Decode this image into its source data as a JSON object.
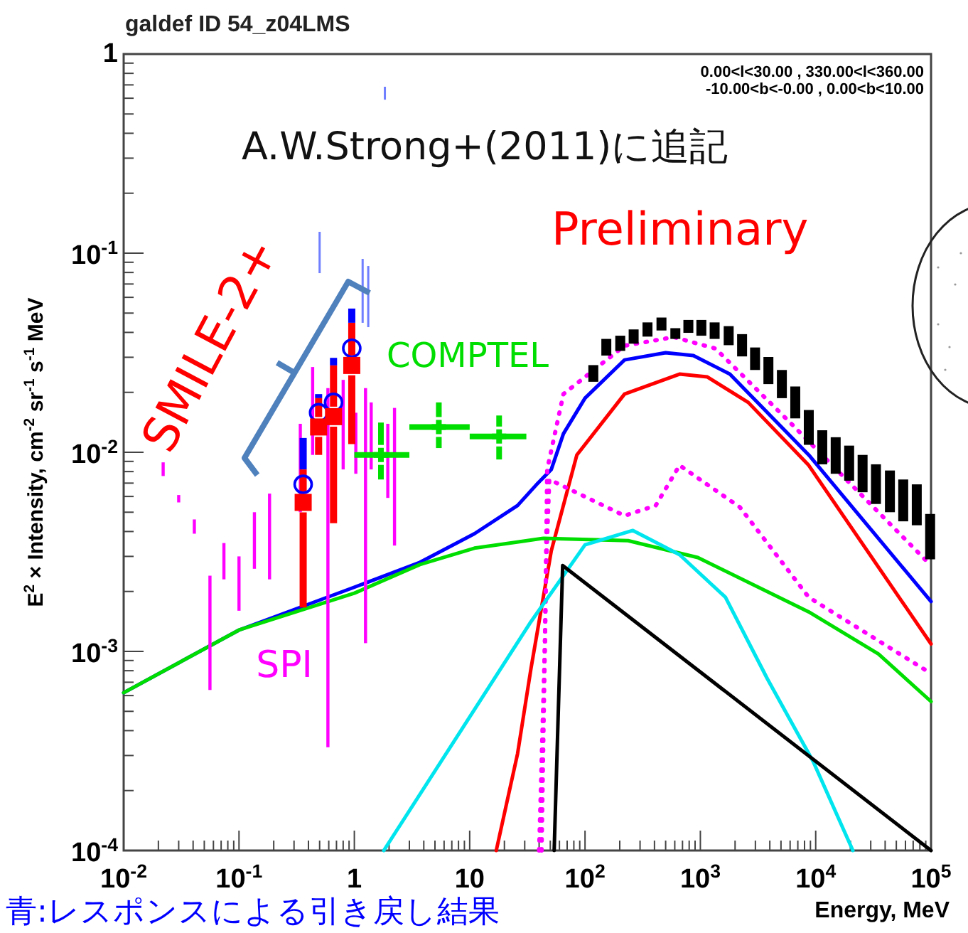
{
  "chart_data": {
    "type": "line",
    "title": "galdef ID 54_z04LMS",
    "xlabel": "Energy, MeV",
    "ylabel": "E$^{2}$ × Intensity, cm$^{-2}$ sr$^{-1}$ s$^{-1}$ MeV",
    "log": "xy",
    "grid": false,
    "xlim": [
      0.01,
      100000
    ],
    "ylim": [
      0.0001,
      1
    ],
    "xticks": [
      {
        "value": 0.01,
        "label": "10$^{-2}$"
      },
      {
        "value": 0.1,
        "label": "10$^{-1}$"
      },
      1,
      10,
      {
        "value": 100,
        "label": "10$^{2}$"
      },
      {
        "value": 1000,
        "label": "10$^{3}$"
      },
      {
        "value": 10000,
        "label": "10$^{4}$"
      },
      {
        "value": 100000,
        "label": "10$^{5}$"
      }
    ],
    "yticks": [
      {
        "value": 0.0001,
        "label": "10$^{-4}$"
      },
      {
        "value": 0.001,
        "label": "10$^{-3}$"
      },
      {
        "value": 0.01,
        "label": "10$^{-2}$"
      },
      {
        "value": 0.1,
        "label": "10$^{-1}$"
      },
      1
    ],
    "annotations": [
      "0.00<l<30.00 , 330.00<l<360.00",
      "-10.00<b<-0.00 ,  0.00<b<10.00",
      "A.W.Strong+(2011)に追記",
      "Preliminary",
      "青:レスポンスによる引き戻し結果"
    ],
    "series": [
      {
        "color": "#0000ff",
        "line_style": "solid",
        "x": [
          0.01,
          0.1,
          1,
          3.7,
          11,
          26,
          39,
          51,
          65,
          100,
          220,
          500,
          870,
          1800,
          8700,
          100000
        ],
        "values": [
          0.00062,
          0.00128,
          0.0021,
          0.0028,
          0.0039,
          0.0054,
          0.007,
          0.0082,
          0.0124,
          0.0187,
          0.0291,
          0.0316,
          0.0306,
          0.0247,
          0.0097,
          0.00178
        ]
      },
      {
        "color": "#ff00ff",
        "line_style": "dotted",
        "x": [
          40,
          45,
          47,
          65,
          220,
          590,
          1350,
          6000,
          98000
        ],
        "values": [
          0.0001,
          0.00114,
          0.0082,
          0.0196,
          0.0343,
          0.0379,
          0.0332,
          0.0141,
          0.00273
        ]
      },
      {
        "color": "#ff0000",
        "line_style": "solid",
        "x": [
          17,
          26,
          34,
          51,
          85,
          220,
          660,
          1150,
          2600,
          8700,
          100000
        ],
        "values": [
          0.0001,
          0.000306,
          0.00082,
          0.0032,
          0.0097,
          0.0196,
          0.0247,
          0.0239,
          0.0178,
          0.0086,
          0.00109
        ]
      },
      {
        "color": "#ff00ff",
        "line_style": "dotted",
        "x": [
          42,
          46,
          49,
          220,
          410,
          660,
          2200,
          8700,
          98000
        ],
        "values": [
          0.0001,
          0.0027,
          0.0073,
          0.0048,
          0.0054,
          0.0086,
          0.0053,
          0.00187,
          0.00078
        ]
      },
      {
        "color": "#00dd00",
        "line_style": "solid",
        "x": [
          0.01,
          0.1,
          1,
          3.7,
          11,
          44,
          236,
          950,
          8700,
          35000,
          100000
        ],
        "values": [
          0.00062,
          0.00128,
          0.00196,
          0.00273,
          0.0033,
          0.0037,
          0.0036,
          0.00296,
          0.00158,
          0.00097,
          0.00056
        ]
      },
      {
        "color": "#00e5ee",
        "line_style": "solid",
        "x": [
          1.8,
          34,
          100,
          260,
          660,
          1650,
          3800,
          9500,
          21000
        ],
        "values": [
          0.0001,
          0.00141,
          0.00343,
          0.00405,
          0.00306,
          0.00187,
          0.00073,
          0.00028,
          0.0001
        ]
      },
      {
        "color": "#000000",
        "line_style": "solid",
        "x": [
          54,
          64,
          100000
        ],
        "values": [
          0.0001,
          0.0027,
          0.0001
        ]
      },
      {
        "type": "bar",
        "color": "#000000",
        "x": [
          118,
          153,
          202,
          264,
          348,
          460,
          607,
          787,
          1020,
          1330,
          1760,
          2300,
          2980,
          3890,
          5090,
          6650,
          8710,
          11400,
          14900,
          19500,
          25500,
          33300,
          44000,
          57400,
          75200,
          98200
        ],
        "base": [
          0.0226,
          0.0306,
          0.0323,
          0.0351,
          0.0381,
          0.0409,
          0.0371,
          0.0398,
          0.0385,
          0.0371,
          0.0345,
          0.0303,
          0.0259,
          0.022,
          0.0187,
          0.0148,
          0.0109,
          0.0087,
          0.0078,
          0.0072,
          0.0063,
          0.0055,
          0.005,
          0.0045,
          0.0043,
          0.0029
        ],
        "values": [
          0.0048,
          0.0065,
          0.0062,
          0.0063,
          0.0068,
          0.0066,
          0.0049,
          0.0064,
          0.0077,
          0.0078,
          0.0085,
          0.0089,
          0.0077,
          0.0081,
          0.0072,
          0.0066,
          0.0054,
          0.0042,
          0.0041,
          0.0036,
          0.0034,
          0.0032,
          0.0031,
          0.0028,
          0.0026,
          0.002
        ]
      },
      {
        "type": "bar",
        "name": "SPI",
        "color": "#ff00ff",
        "x": [
          0.022,
          0.03,
          0.041,
          0.056,
          0.074,
          0.1,
          0.136,
          0.184,
          0.34,
          0.435,
          0.59,
          0.8,
          1.03,
          1.25,
          1.4,
          1.95,
          2.23
        ],
        "base": [
          0.0076,
          0.0056,
          0.0039,
          0.00064,
          0.0023,
          0.0016,
          0.0026,
          0.0023,
          0.005,
          0.0097,
          0.00033,
          0.0082,
          0.0078,
          0.0011,
          0.0082,
          0.0059,
          0.0034
        ],
        "values": [
          0.0013,
          0.0005,
          0.0007,
          0.00176,
          0.0012,
          0.0014,
          0.0024,
          0.0039,
          0.0089,
          0.0171,
          0.02067,
          0.0149,
          0.008,
          0.0199,
          0.0096,
          0.008,
          0.0133
        ]
      },
      {
        "type": "scatter",
        "name": "COMPTEL",
        "color": "#00dd00",
        "marker": "cross",
        "x": [
          1.7,
          5.4,
          18
        ],
        "values": [
          0.0097,
          0.0134,
          0.012
        ],
        "errors": [
          [
            0.0073,
            0.0141
          ],
          [
            0.0105,
            0.0178
          ],
          [
            0.0092,
            0.0153
          ]
        ],
        "xerrors": [
          [
            1,
            3
          ],
          [
            3,
            10
          ],
          [
            10,
            31
          ]
        ]
      },
      {
        "type": "bar",
        "color": "#6f7fff",
        "x": [
          0.5,
          1.18,
          1.32,
          1.84
        ],
        "base": [
          0.0794,
          0.0447,
          0.0425,
          0.59
        ],
        "values": [
          0.0486,
          0.0489,
          0.0437,
          0.095
        ]
      },
      {
        "type": "bar",
        "color": "#0000ff",
        "x": [
          0.36,
          0.49,
          0.66,
          0.95
        ],
        "base": [
          0.0082,
          0.0187,
          0.0273,
          0.0447
        ],
        "values": [
          0.0036,
          0.0009,
          0.0025,
          0.008
        ]
      },
      {
        "type": "scatter",
        "color": "#0000ff",
        "marker": "circle",
        "x": [
          0.36,
          0.49,
          0.66,
          0.95
        ],
        "values": [
          0.0069,
          0.0158,
          0.0178,
          0.0333
        ]
      },
      {
        "type": "scatter",
        "name": "SMILE-2+",
        "color": "#ff0000",
        "marker": "square",
        "x": [
          0.36,
          0.49,
          0.66,
          0.95
        ],
        "values": [
          0.0056,
          0.0134,
          0.0151,
          0.0273
        ],
        "errors": [
          [
            0.00166,
            0.0082
          ],
          [
            0.0097,
            0.0187
          ],
          [
            0.0044,
            0.0273
          ],
          [
            0.011,
            0.0447
          ]
        ]
      }
    ]
  }
}
